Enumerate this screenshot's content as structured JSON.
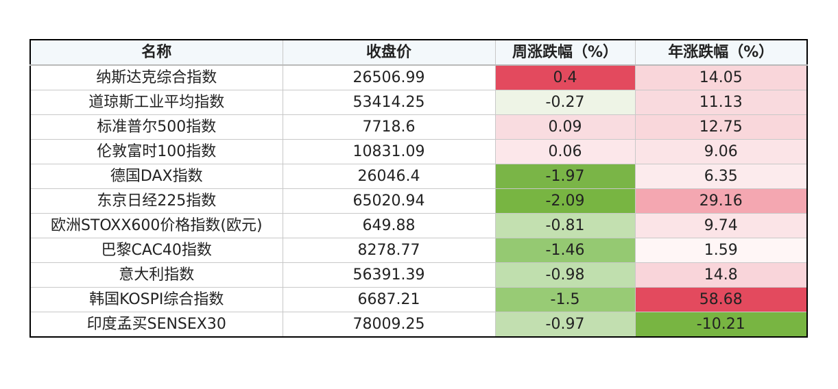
{
  "chart_data": {
    "type": "table",
    "columns": [
      "名称",
      "收盘价",
      "周涨跌幅（%）",
      "年涨跌幅（%）"
    ],
    "rows": [
      [
        "纳斯达克综合指数",
        "26506.99",
        "0.4",
        "14.05"
      ],
      [
        "道琼斯工业平均指数",
        "53414.25",
        "-0.27",
        "11.13"
      ],
      [
        "标准普尔500指数",
        "7718.6",
        "0.09",
        "12.75"
      ],
      [
        "伦敦富时100指数",
        "10831.09",
        "0.06",
        "9.06"
      ],
      [
        "德国DAX指数",
        "26046.4",
        "-1.97",
        "6.35"
      ],
      [
        "东京日经225指数",
        "65020.94",
        "-2.09",
        "29.16"
      ],
      [
        "欧洲STOXX600价格指数(欧元)",
        "649.88",
        "-0.81",
        "9.74"
      ],
      [
        "巴黎CAC40指数",
        "8278.77",
        "-1.46",
        "1.59"
      ],
      [
        "意大利指数",
        "56391.39",
        "-0.98",
        "14.8"
      ],
      [
        "韩国KOSPI综合指数",
        "6687.21",
        "-1.5",
        "58.68"
      ],
      [
        "印度孟买SENSEX30",
        "78009.25",
        "-0.97",
        "-10.21"
      ]
    ],
    "cell_colors": {
      "weekly": [
        "#e34a5e",
        "#eef4e6",
        "#f9dce0",
        "#fce7ea",
        "#7ab547",
        "#78b542",
        "#c3e0b0",
        "#95c972",
        "#c0dfae",
        "#98cb75",
        "#c2dfb0"
      ],
      "yearly": [
        "#f9d6da",
        "#f9dade",
        "#f9d7db",
        "#fbe4e7",
        "#fcebed",
        "#f4a7b1",
        "#fbe4e7",
        "#fff6f6",
        "#f9d5da",
        "#e34a5e",
        "#78b542"
      ]
    }
  }
}
